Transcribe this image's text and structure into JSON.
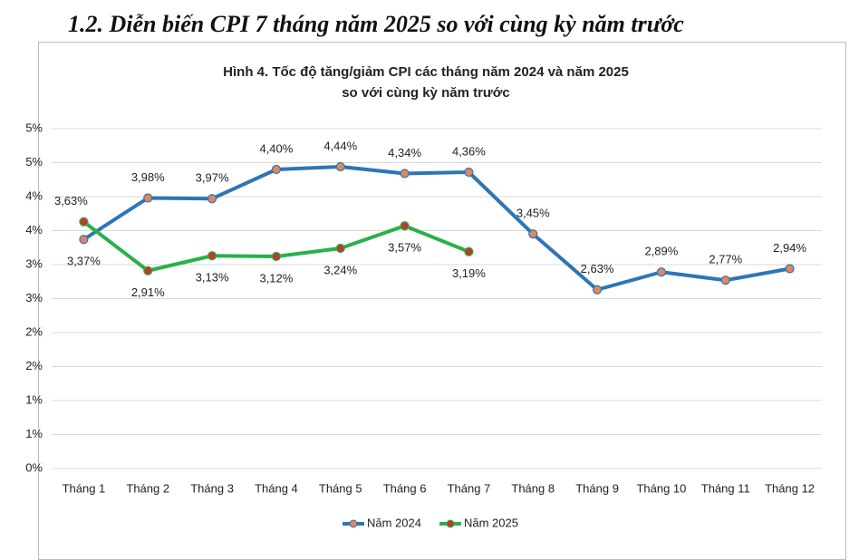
{
  "heading": "1.2. Diễn biến CPI 7 tháng năm 2025 so với cùng kỳ năm trước",
  "chart_data": {
    "type": "line",
    "title": [
      "Hình 4. Tốc độ tăng/giảm CPI các tháng năm 2024 và năm 2025",
      "so với cùng kỳ năm trước"
    ],
    "categories": [
      "Tháng 1",
      "Tháng 2",
      "Tháng 3",
      "Tháng 4",
      "Tháng 5",
      "Tháng 6",
      "Tháng 7",
      "Tháng 8",
      "Tháng 9",
      "Tháng 10",
      "Tháng 11",
      "Tháng 12"
    ],
    "series": [
      {
        "name": "Năm 2024",
        "color": "#2e75b6",
        "marker_color": "#e0875a",
        "values": [
          3.37,
          3.98,
          3.97,
          4.4,
          4.44,
          4.34,
          4.36,
          3.45,
          2.63,
          2.89,
          2.77,
          2.94
        ],
        "value_labels": [
          "3,37%",
          "3,98%",
          "3,97%",
          "4,40%",
          "4,44%",
          "4,34%",
          "4,36%",
          "3,45%",
          "2,63%",
          "2,89%",
          "2,77%",
          "2,94%"
        ]
      },
      {
        "name": "Năm 2025",
        "color": "#2ab04a",
        "marker_color": "#c0392b",
        "values": [
          3.63,
          2.91,
          3.13,
          3.12,
          3.24,
          3.57,
          3.19,
          null,
          null,
          null,
          null,
          null
        ],
        "value_labels": [
          "3,63%",
          "2,91%",
          "3,13%",
          "3,12%",
          "3,24%",
          "3,57%",
          "3,19%",
          null,
          null,
          null,
          null,
          null
        ]
      }
    ],
    "ylim": [
      0,
      5
    ],
    "yticks": [
      {
        "value": 0,
        "label": "0%"
      },
      {
        "value": 0.5,
        "label": "1%"
      },
      {
        "value": 1,
        "label": "1%"
      },
      {
        "value": 1.5,
        "label": "2%"
      },
      {
        "value": 2,
        "label": "2%"
      },
      {
        "value": 2.5,
        "label": "3%"
      },
      {
        "value": 3,
        "label": "3%"
      },
      {
        "value": 3.5,
        "label": "4%"
      },
      {
        "value": 4,
        "label": "4%"
      },
      {
        "value": 4.5,
        "label": "5%"
      },
      {
        "value": 5,
        "label": "5%"
      }
    ],
    "grid": true,
    "legend": "bottom"
  }
}
